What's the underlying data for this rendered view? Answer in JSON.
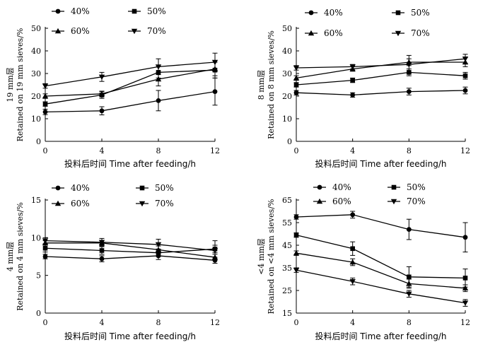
{
  "chart_data": [
    {
      "type": "line",
      "ylabel_cn": "19 mm层",
      "ylabel_en": "Retained on 19 mm sieves/%",
      "xlabel": "投料后时间  Time after feeding/h",
      "x": [
        0,
        4,
        8,
        12
      ],
      "xticks": [
        "0",
        "4",
        "8",
        "12"
      ],
      "yticks": [
        "0",
        "10",
        "20",
        "30",
        "40",
        "50"
      ],
      "ylim": [
        0,
        50
      ],
      "series": [
        {
          "name": "40%",
          "marker": "circle",
          "values": [
            13,
            13.5,
            18,
            22
          ],
          "err": [
            1.2,
            1.8,
            4.5,
            6
          ]
        },
        {
          "name": "50%",
          "marker": "square",
          "values": [
            16.5,
            20.5,
            30.5,
            31.5
          ],
          "err": [
            1,
            1.5,
            2.5,
            3.5
          ]
        },
        {
          "name": "60%",
          "marker": "triangle-up",
          "values": [
            20,
            21,
            27.5,
            32
          ],
          "err": [
            1,
            1.2,
            3,
            3
          ]
        },
        {
          "name": "70%",
          "marker": "triangle-down",
          "values": [
            24.5,
            28.5,
            33,
            35
          ],
          "err": [
            1,
            2,
            3.5,
            4
          ]
        }
      ]
    },
    {
      "type": "line",
      "ylabel_cn": "8 mm层",
      "ylabel_en": "Retained on 8 mm sieves/%",
      "xlabel": "投料后时间  Time after feeding/h",
      "x": [
        0,
        4,
        8,
        12
      ],
      "xticks": [
        "0",
        "4",
        "8",
        "12"
      ],
      "yticks": [
        "0",
        "10",
        "20",
        "30",
        "40",
        "50"
      ],
      "ylim": [
        0,
        50
      ],
      "series": [
        {
          "name": "40%",
          "marker": "circle",
          "values": [
            21.5,
            20.5,
            22,
            22.5
          ],
          "err": [
            1,
            1,
            1.5,
            1.5
          ]
        },
        {
          "name": "50%",
          "marker": "square",
          "values": [
            25,
            27,
            30.5,
            29
          ],
          "err": [
            1,
            1,
            1.5,
            1.5
          ]
        },
        {
          "name": "60%",
          "marker": "triangle-up",
          "values": [
            28,
            32,
            35,
            35
          ],
          "err": [
            1,
            1,
            1.5,
            2
          ]
        },
        {
          "name": "70%",
          "marker": "triangle-down",
          "values": [
            32.5,
            33,
            34,
            36.5
          ],
          "err": [
            1,
            1,
            4,
            2
          ]
        }
      ]
    },
    {
      "type": "line",
      "ylabel_cn": "4 mm层",
      "ylabel_en": "Retained on 4 mm sieves/%",
      "xlabel": "投料后时间  Time after feeding/h",
      "x": [
        0,
        4,
        8,
        12
      ],
      "xticks": [
        "0",
        "4",
        "8",
        "12"
      ],
      "yticks": [
        "0",
        "5",
        "10",
        "15"
      ],
      "ylim": [
        0,
        15
      ],
      "series": [
        {
          "name": "40%",
          "marker": "circle",
          "values": [
            7.5,
            7.2,
            7.6,
            7
          ],
          "err": [
            0.3,
            0.4,
            0.5,
            0.4
          ]
        },
        {
          "name": "50%",
          "marker": "square",
          "values": [
            8.6,
            8.3,
            8,
            8.5
          ],
          "err": [
            0.5,
            0.5,
            0.5,
            0.5
          ]
        },
        {
          "name": "60%",
          "marker": "triangle-up",
          "values": [
            9.3,
            9.3,
            8.4,
            7.4
          ],
          "err": [
            0.3,
            0.3,
            0.5,
            0.4
          ]
        },
        {
          "name": "70%",
          "marker": "triangle-down",
          "values": [
            9.6,
            9.4,
            9.1,
            8.3
          ],
          "err": [
            0.4,
            0.5,
            0.7,
            1.3
          ]
        }
      ]
    },
    {
      "type": "line",
      "ylabel_cn": "<4 mm层",
      "ylabel_en": "Retained on <4 mm sieves/%",
      "xlabel": "投料后时间  Time after feeding/h",
      "x": [
        0,
        4,
        8,
        12
      ],
      "xticks": [
        "0",
        "4",
        "8",
        "12"
      ],
      "yticks": [
        "15",
        "25",
        "35",
        "45",
        "55",
        "65"
      ],
      "ylim": [
        15,
        65
      ],
      "series": [
        {
          "name": "40%",
          "marker": "circle",
          "values": [
            57.5,
            58.5,
            52,
            48.5
          ],
          "err": [
            1,
            1.5,
            4.5,
            6.5
          ]
        },
        {
          "name": "50%",
          "marker": "square",
          "values": [
            49.5,
            43.5,
            31,
            30.5
          ],
          "err": [
            1,
            3,
            4.5,
            4
          ]
        },
        {
          "name": "60%",
          "marker": "triangle-up",
          "values": [
            41.5,
            37.5,
            28,
            26
          ],
          "err": [
            1,
            1.5,
            2,
            1.5
          ]
        },
        {
          "name": "70%",
          "marker": "triangle-down",
          "values": [
            34,
            29,
            23.5,
            19.5
          ],
          "err": [
            1,
            1.5,
            1.5,
            1.5
          ]
        }
      ]
    }
  ]
}
